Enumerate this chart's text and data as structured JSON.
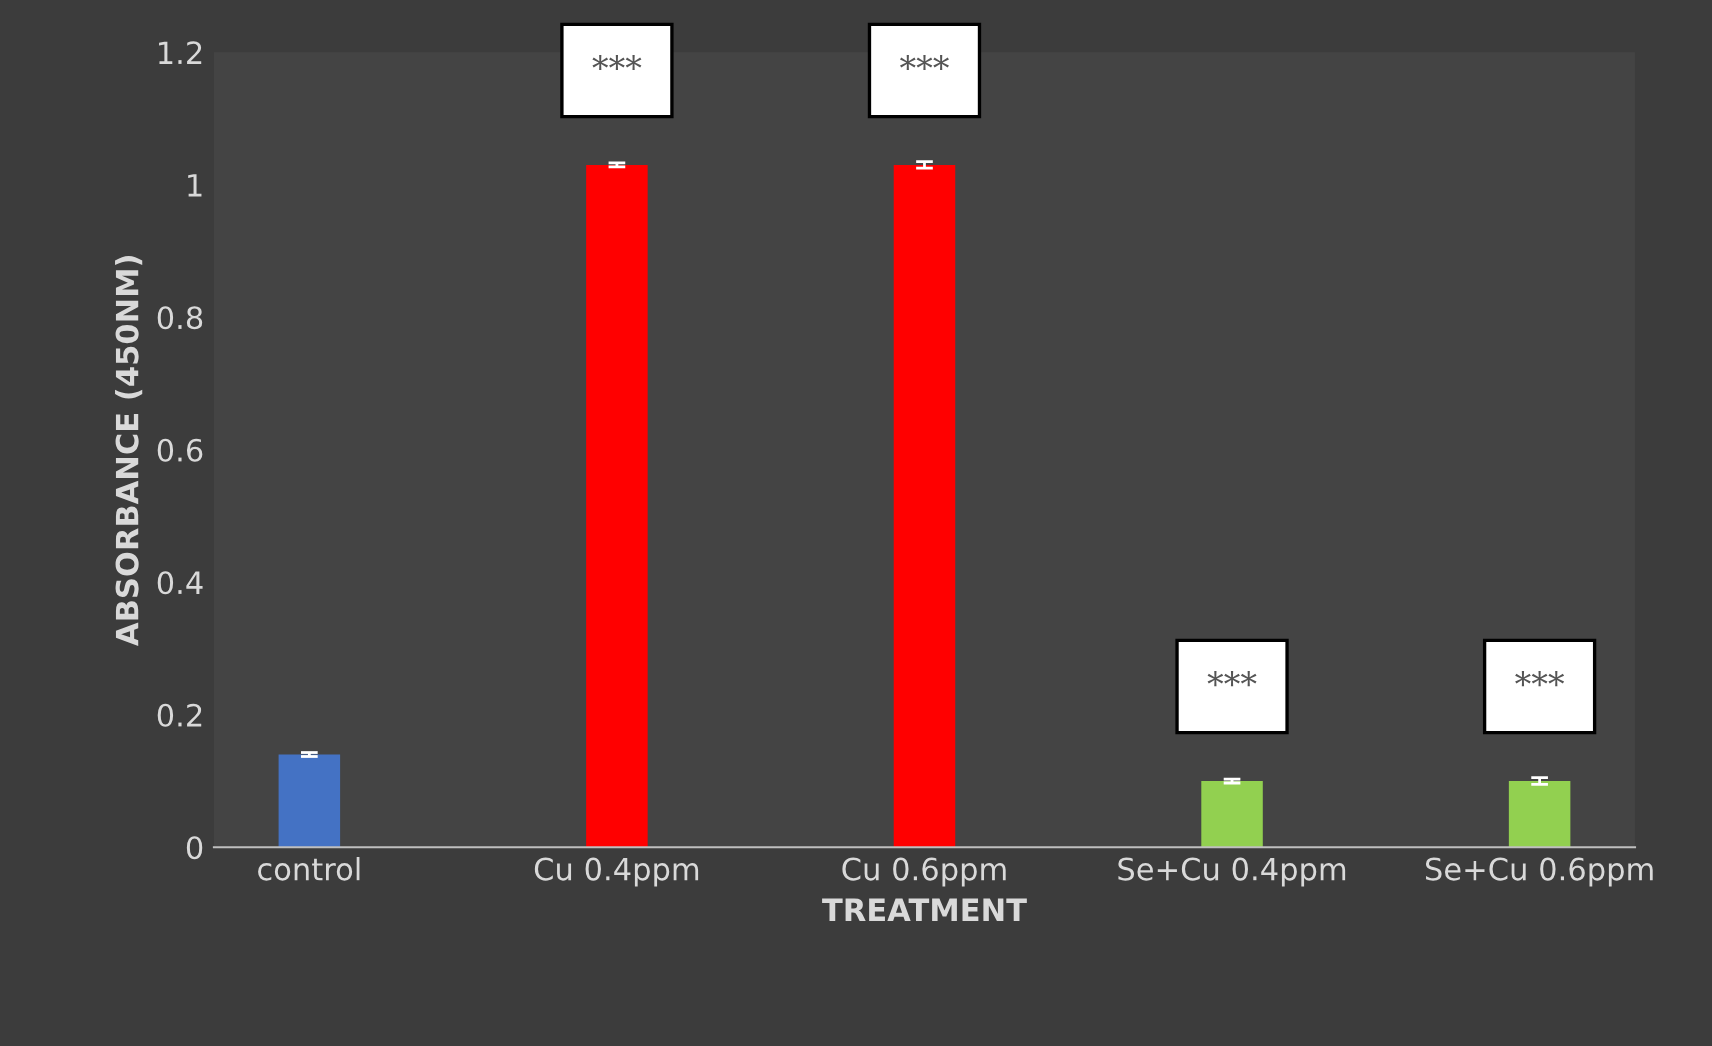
{
  "chart_data": {
    "type": "bar",
    "xlabel": "TREATMENT",
    "ylabel": "ABSORBANCE (450NM)",
    "categories": [
      "control",
      "Cu 0.4ppm",
      "Cu 0.6ppm",
      "Se+Cu 0.4ppm",
      "Se+Cu 0.6ppm"
    ],
    "values": [
      0.14,
      1.03,
      1.03,
      0.1,
      0.1
    ],
    "errors": [
      0.003,
      0.003,
      0.005,
      0.003,
      0.005
    ],
    "colors": [
      "#4472c4",
      "#ff0000",
      "#ff0000",
      "#92d050",
      "#92d050"
    ],
    "ylim": [
      0,
      1.2
    ],
    "yticks": [
      0,
      0.2,
      0.4,
      0.6,
      0.8,
      1,
      1.2
    ],
    "grid": false,
    "value_labels": [
      null,
      "***",
      "***",
      "***",
      "***"
    ]
  }
}
